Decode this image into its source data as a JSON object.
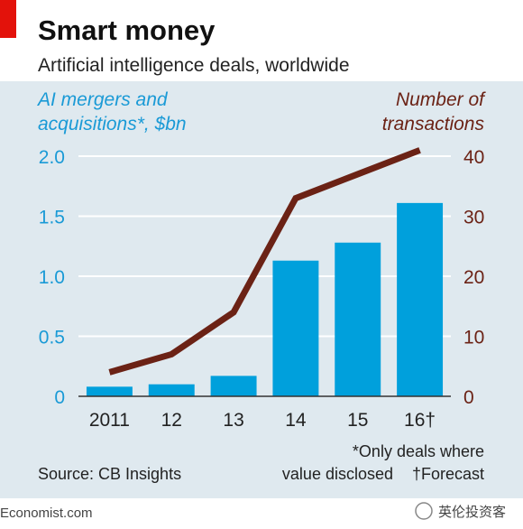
{
  "chart_data": {
    "type": "bar",
    "title": "Smart money",
    "subtitle": "Artificial intelligence deals, worldwide",
    "categories": [
      "2011",
      "12",
      "13",
      "14",
      "15",
      "16†"
    ],
    "series": [
      {
        "axis": "left",
        "type": "bar",
        "values": [
          0.08,
          0.1,
          0.17,
          1.13,
          1.28,
          1.61
        ]
      },
      {
        "axis": "right",
        "type": "line",
        "values": [
          4,
          7,
          14,
          33,
          37,
          41
        ]
      }
    ],
    "left_axis": {
      "label_line1": "AI mergers and",
      "label_line2": "acquisitions*, $bn",
      "range": [
        0,
        2.0
      ],
      "ticks": [
        "0",
        "0.5",
        "1.0",
        "1.5",
        "2.0"
      ],
      "tick_values": [
        0,
        0.5,
        1.0,
        1.5,
        2.0
      ]
    },
    "right_axis": {
      "label_line1": "Number of",
      "label_line2": "transactions",
      "range": [
        0,
        40
      ],
      "ticks": [
        "0",
        "10",
        "20",
        "30",
        "40"
      ],
      "tick_values": [
        0,
        10,
        20,
        30,
        40
      ]
    },
    "grid": true,
    "source": "Source: CB Insights",
    "footnote_line1": "*Only deals where",
    "footnote_line2_a": "value disclosed",
    "footnote_line2_b": "†Forecast",
    "brand": "Economist.com",
    "watermark": "英伦投资客",
    "colors": {
      "background_panel": "#dfe9ef",
      "bars": "#00a0dc",
      "line": "#6b2215",
      "left_axis_text": "#1a9ad6",
      "right_axis_text": "#6b2215",
      "accent_red": "#e3120b",
      "gridline": "#ffffff"
    }
  }
}
